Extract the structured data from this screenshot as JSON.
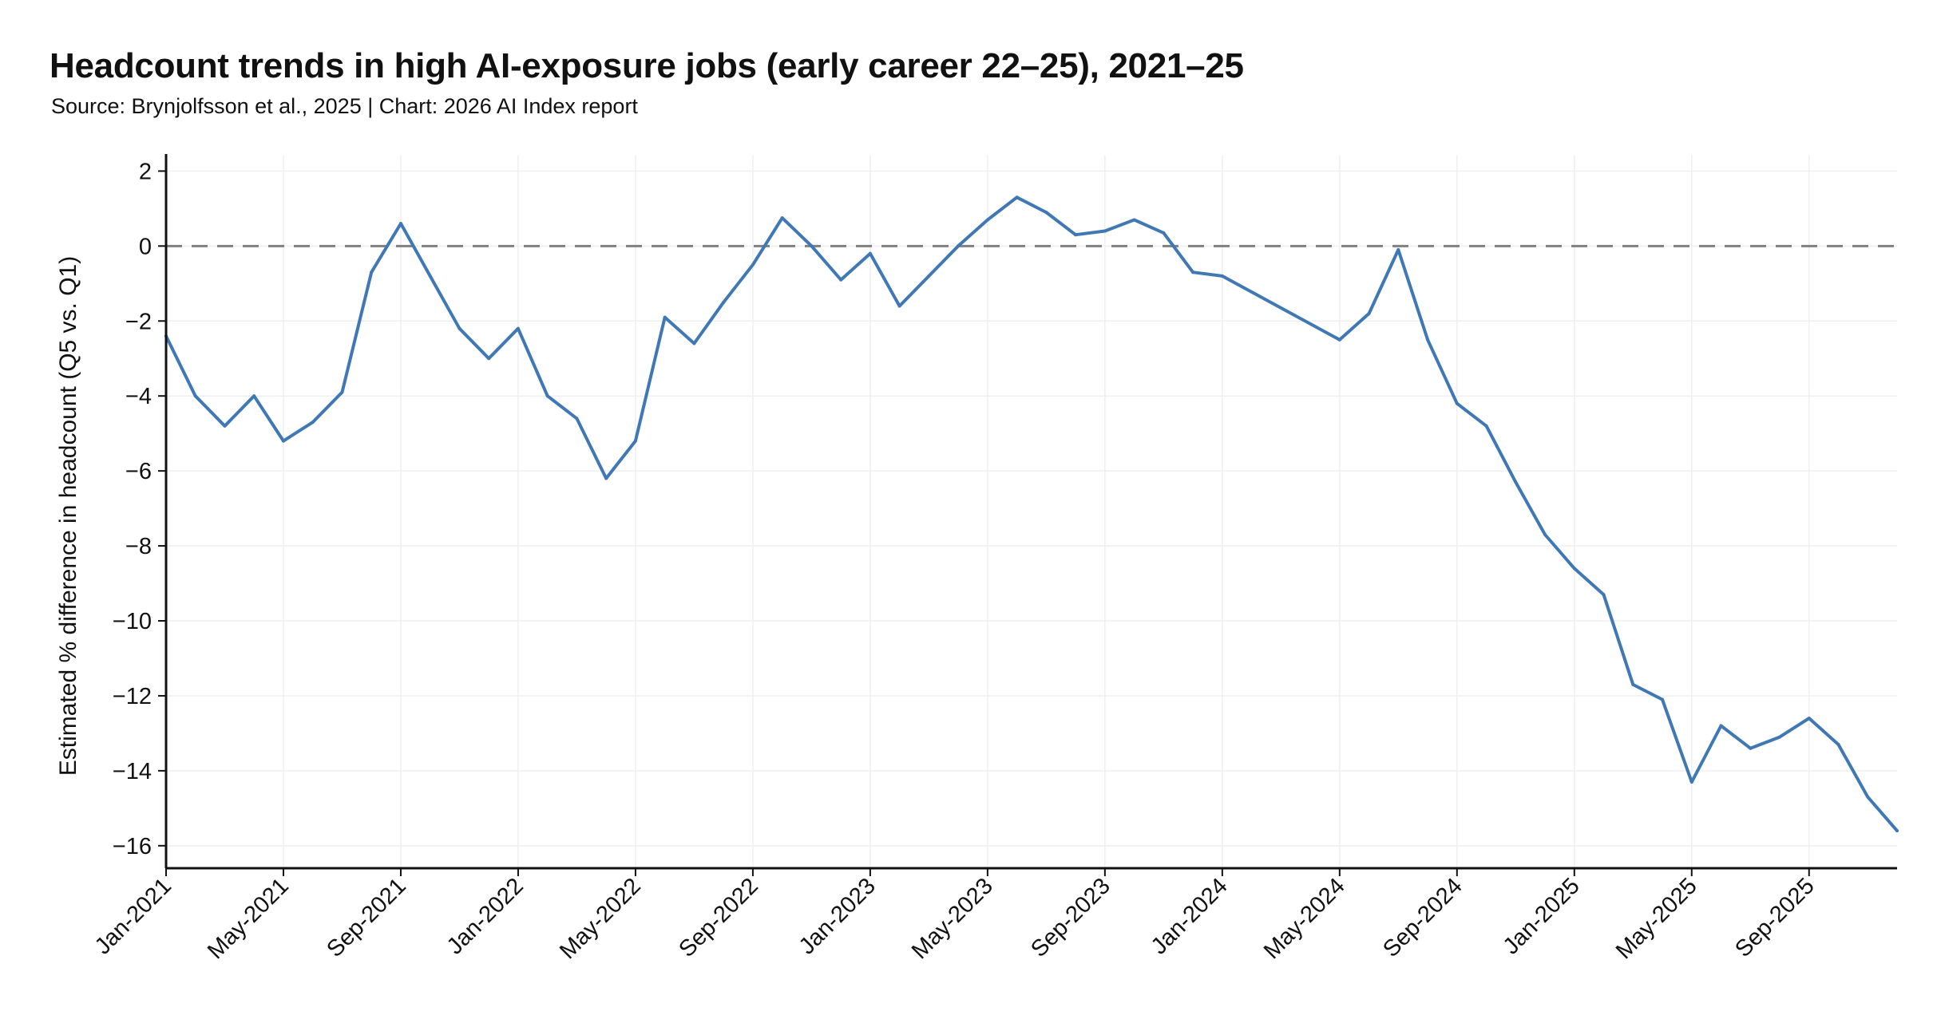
{
  "header": {
    "title": "Headcount trends in high AI-exposure jobs (early career 22–25), 2021–25",
    "subtitle": "Source: Brynjolfsson et al., 2025 | Chart: 2026 AI Index report"
  },
  "chart_data": {
    "type": "line",
    "title": "Headcount trends in high AI-exposure jobs (early career 22–25), 2021–25",
    "subtitle": "Source: Brynjolfsson et al., 2025 | Chart: 2026 AI Index report",
    "xlabel": "",
    "ylabel": "Estimated % difference in headcount (Q5 vs. Q1)",
    "x_tick_labels": [
      "Jan-2021",
      "May-2021",
      "Sep-2021",
      "Jan-2022",
      "May-2022",
      "Sep-2022",
      "Jan-2023",
      "May-2023",
      "Sep-2023",
      "Jan-2024",
      "May-2024",
      "Sep-2024",
      "Jan-2025",
      "May-2025",
      "Sep-2025"
    ],
    "y_ticks": [
      2,
      0,
      -2,
      -4,
      -6,
      -8,
      -10,
      -12,
      -14,
      -16
    ],
    "ylim": [
      -16.6,
      2.2
    ],
    "xlim": [
      "2021-01",
      "2025-12"
    ],
    "grid": true,
    "reference_line": {
      "y": 0,
      "style": "dashed",
      "color": "#808080"
    },
    "line_color": "#3f78b5",
    "series": [
      {
        "x": [
          "2021-01",
          "2021-02",
          "2021-03",
          "2021-04",
          "2021-05",
          "2021-06",
          "2021-07",
          "2021-08",
          "2021-09",
          "2021-10",
          "2021-11",
          "2021-12",
          "2022-01",
          "2022-02",
          "2022-03",
          "2022-04",
          "2022-05",
          "2022-06",
          "2022-07",
          "2022-08",
          "2022-09",
          "2022-10",
          "2022-11",
          "2022-12",
          "2023-01",
          "2023-02",
          "2023-03",
          "2023-04",
          "2023-05",
          "2023-06",
          "2023-07",
          "2023-08",
          "2023-09",
          "2023-10",
          "2023-11",
          "2023-12",
          "2024-01",
          "2024-05",
          "2024-06",
          "2024-07",
          "2024-08",
          "2024-09",
          "2024-10",
          "2024-11",
          "2024-12",
          "2025-01",
          "2025-02",
          "2025-03",
          "2025-04",
          "2025-05",
          "2025-06",
          "2025-07",
          "2025-08",
          "2025-09",
          "2025-10",
          "2025-11",
          "2025-12"
        ],
        "values": [
          -2.4,
          -4.0,
          -4.8,
          -4.0,
          -5.2,
          -4.7,
          -3.9,
          -0.7,
          0.6,
          -0.8,
          -2.2,
          -3.0,
          -2.2,
          -4.0,
          -4.6,
          -6.2,
          -5.2,
          -1.9,
          -2.6,
          -1.5,
          -0.5,
          0.75,
          0.0,
          -0.9,
          -0.2,
          -1.6,
          -0.8,
          0.0,
          0.7,
          1.3,
          0.9,
          0.3,
          0.4,
          0.7,
          0.35,
          -0.7,
          -0.8,
          -2.5,
          -1.8,
          -0.1,
          -2.5,
          -4.2,
          -4.8,
          -6.3,
          -7.7,
          -8.6,
          -9.3,
          -11.7,
          -12.1,
          -14.3,
          -12.8,
          -13.4,
          -13.1,
          -12.6,
          -13.3,
          -14.7,
          -15.6
        ]
      }
    ]
  }
}
